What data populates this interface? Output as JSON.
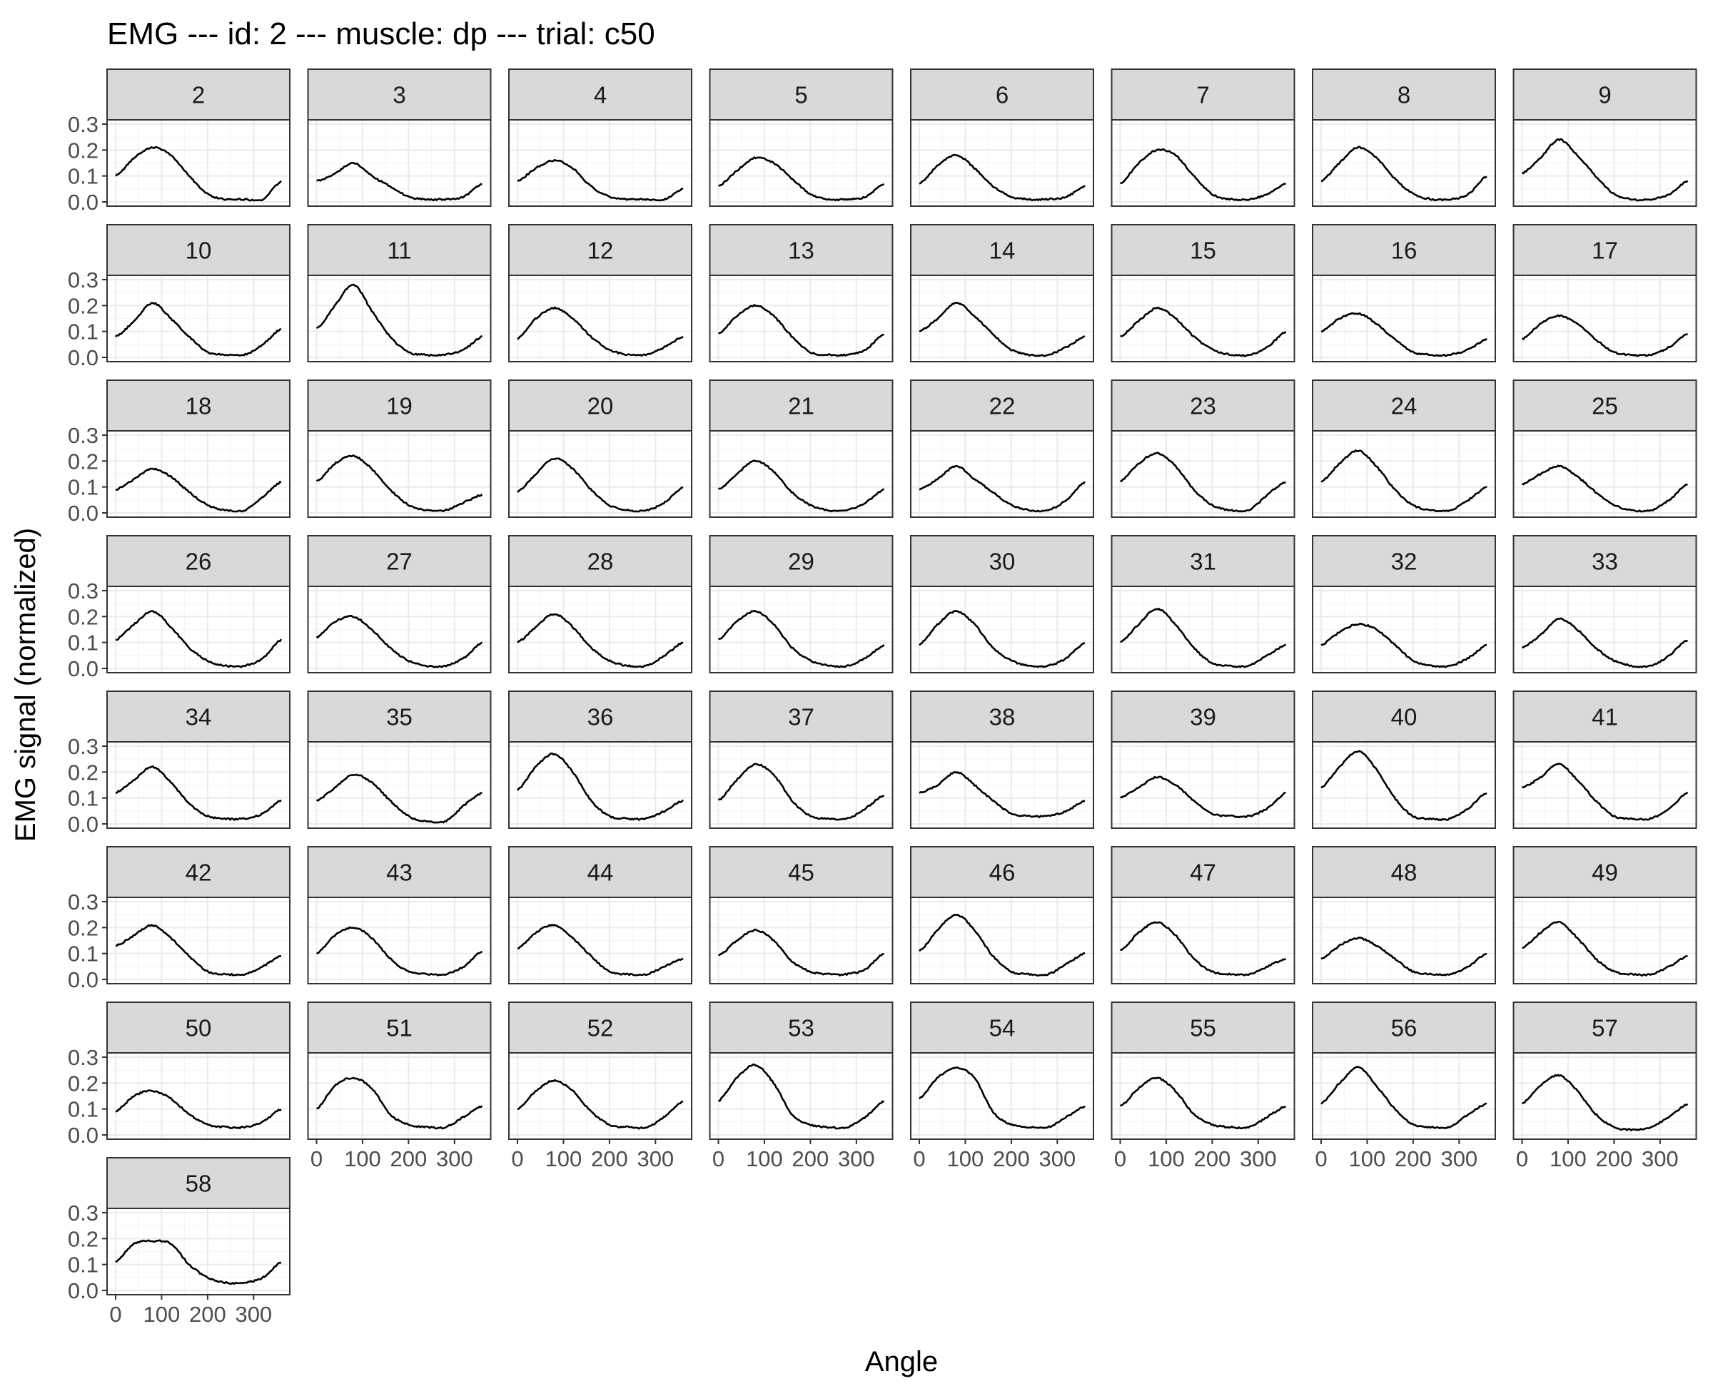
{
  "chart_data": {
    "type": "line",
    "layout": "faceted small multiples",
    "title": "EMG --- id: 2 --- muscle: dp --- trial: c50",
    "xlabel": "Angle",
    "ylabel": "EMG signal (normalized)",
    "xlim": [
      0,
      360
    ],
    "ylim": [
      0,
      0.3
    ],
    "x_ticks": [
      0,
      100,
      200,
      300
    ],
    "x_tick_labels": [
      "0",
      "100",
      "200",
      "300"
    ],
    "y_ticks": [
      0,
      0.1,
      0.2,
      0.3
    ],
    "y_tick_labels": [
      "0.0",
      "0.1",
      "0.2",
      "0.3"
    ],
    "grid": true,
    "legend": "none",
    "colors": {
      "line": "#000000",
      "strip_fill": "#d9d9d9",
      "panel_border": "#333333",
      "grid_major": "#ebebeb",
      "grid_minor": "#f5f5f5"
    },
    "sample_angles": [
      0,
      40,
      80,
      120,
      160,
      200,
      240,
      280,
      320,
      360
    ],
    "facets": [
      {
        "label": "2",
        "values": [
          0.1,
          0.17,
          0.21,
          0.18,
          0.1,
          0.03,
          0.01,
          0.01,
          0.01,
          0.08
        ]
      },
      {
        "label": "3",
        "values": [
          0.08,
          0.11,
          0.15,
          0.1,
          0.06,
          0.02,
          0.01,
          0.01,
          0.02,
          0.07
        ]
      },
      {
        "label": "4",
        "values": [
          0.08,
          0.13,
          0.16,
          0.13,
          0.06,
          0.02,
          0.01,
          0.01,
          0.01,
          0.05
        ]
      },
      {
        "label": "5",
        "values": [
          0.06,
          0.12,
          0.17,
          0.15,
          0.09,
          0.03,
          0.01,
          0.01,
          0.02,
          0.07
        ]
      },
      {
        "label": "6",
        "values": [
          0.07,
          0.14,
          0.18,
          0.13,
          0.06,
          0.02,
          0.01,
          0.01,
          0.02,
          0.06
        ]
      },
      {
        "label": "7",
        "values": [
          0.07,
          0.15,
          0.2,
          0.18,
          0.1,
          0.03,
          0.01,
          0.01,
          0.03,
          0.07
        ]
      },
      {
        "label": "8",
        "values": [
          0.08,
          0.15,
          0.21,
          0.17,
          0.09,
          0.03,
          0.01,
          0.01,
          0.03,
          0.1
        ]
      },
      {
        "label": "9",
        "values": [
          0.11,
          0.17,
          0.24,
          0.18,
          0.1,
          0.03,
          0.01,
          0.01,
          0.03,
          0.08
        ]
      },
      {
        "label": "10",
        "values": [
          0.08,
          0.14,
          0.21,
          0.15,
          0.08,
          0.02,
          0.01,
          0.01,
          0.05,
          0.11
        ]
      },
      {
        "label": "11",
        "values": [
          0.11,
          0.2,
          0.28,
          0.18,
          0.08,
          0.02,
          0.01,
          0.01,
          0.03,
          0.08
        ]
      },
      {
        "label": "12",
        "values": [
          0.07,
          0.15,
          0.19,
          0.15,
          0.08,
          0.03,
          0.01,
          0.01,
          0.04,
          0.08
        ]
      },
      {
        "label": "13",
        "values": [
          0.09,
          0.16,
          0.2,
          0.16,
          0.08,
          0.02,
          0.01,
          0.01,
          0.03,
          0.09
        ]
      },
      {
        "label": "14",
        "values": [
          0.1,
          0.15,
          0.21,
          0.16,
          0.09,
          0.03,
          0.01,
          0.01,
          0.04,
          0.08
        ]
      },
      {
        "label": "15",
        "values": [
          0.08,
          0.14,
          0.19,
          0.15,
          0.08,
          0.03,
          0.01,
          0.01,
          0.04,
          0.1
        ]
      },
      {
        "label": "16",
        "values": [
          0.1,
          0.15,
          0.17,
          0.13,
          0.07,
          0.02,
          0.01,
          0.01,
          0.03,
          0.07
        ]
      },
      {
        "label": "17",
        "values": [
          0.07,
          0.13,
          0.16,
          0.13,
          0.07,
          0.02,
          0.01,
          0.01,
          0.04,
          0.09
        ]
      },
      {
        "label": "18",
        "values": [
          0.09,
          0.13,
          0.17,
          0.14,
          0.08,
          0.03,
          0.01,
          0.01,
          0.06,
          0.12
        ]
      },
      {
        "label": "19",
        "values": [
          0.12,
          0.19,
          0.22,
          0.17,
          0.09,
          0.03,
          0.01,
          0.01,
          0.04,
          0.07
        ]
      },
      {
        "label": "20",
        "values": [
          0.08,
          0.15,
          0.21,
          0.17,
          0.09,
          0.03,
          0.01,
          0.01,
          0.04,
          0.1
        ]
      },
      {
        "label": "21",
        "values": [
          0.09,
          0.15,
          0.2,
          0.16,
          0.08,
          0.03,
          0.01,
          0.01,
          0.04,
          0.09
        ]
      },
      {
        "label": "22",
        "values": [
          0.09,
          0.13,
          0.18,
          0.13,
          0.08,
          0.03,
          0.01,
          0.01,
          0.05,
          0.12
        ]
      },
      {
        "label": "23",
        "values": [
          0.12,
          0.19,
          0.23,
          0.18,
          0.09,
          0.03,
          0.01,
          0.01,
          0.07,
          0.12
        ]
      },
      {
        "label": "24",
        "values": [
          0.12,
          0.19,
          0.24,
          0.18,
          0.09,
          0.03,
          0.01,
          0.01,
          0.05,
          0.1
        ]
      },
      {
        "label": "25",
        "values": [
          0.11,
          0.15,
          0.18,
          0.14,
          0.08,
          0.03,
          0.01,
          0.01,
          0.05,
          0.11
        ]
      },
      {
        "label": "26",
        "values": [
          0.11,
          0.17,
          0.22,
          0.16,
          0.08,
          0.03,
          0.01,
          0.01,
          0.04,
          0.11
        ]
      },
      {
        "label": "27",
        "values": [
          0.12,
          0.18,
          0.2,
          0.15,
          0.08,
          0.03,
          0.01,
          0.01,
          0.04,
          0.1
        ]
      },
      {
        "label": "28",
        "values": [
          0.1,
          0.16,
          0.21,
          0.16,
          0.08,
          0.03,
          0.01,
          0.01,
          0.05,
          0.1
        ]
      },
      {
        "label": "29",
        "values": [
          0.11,
          0.18,
          0.22,
          0.17,
          0.08,
          0.03,
          0.01,
          0.01,
          0.04,
          0.09
        ]
      },
      {
        "label": "30",
        "values": [
          0.09,
          0.17,
          0.22,
          0.17,
          0.08,
          0.03,
          0.01,
          0.01,
          0.04,
          0.1
        ]
      },
      {
        "label": "31",
        "values": [
          0.1,
          0.17,
          0.23,
          0.17,
          0.08,
          0.02,
          0.01,
          0.01,
          0.05,
          0.09
        ]
      },
      {
        "label": "32",
        "values": [
          0.09,
          0.14,
          0.17,
          0.15,
          0.09,
          0.03,
          0.01,
          0.01,
          0.04,
          0.09
        ]
      },
      {
        "label": "33",
        "values": [
          0.08,
          0.13,
          0.19,
          0.15,
          0.08,
          0.03,
          0.01,
          0.01,
          0.05,
          0.11
        ]
      },
      {
        "label": "34",
        "values": [
          0.12,
          0.17,
          0.22,
          0.16,
          0.08,
          0.03,
          0.02,
          0.02,
          0.04,
          0.09
        ]
      },
      {
        "label": "35",
        "values": [
          0.09,
          0.14,
          0.19,
          0.16,
          0.09,
          0.03,
          0.01,
          0.01,
          0.07,
          0.12
        ]
      },
      {
        "label": "36",
        "values": [
          0.13,
          0.22,
          0.27,
          0.2,
          0.09,
          0.03,
          0.02,
          0.02,
          0.05,
          0.09
        ]
      },
      {
        "label": "37",
        "values": [
          0.09,
          0.17,
          0.23,
          0.19,
          0.09,
          0.03,
          0.02,
          0.02,
          0.06,
          0.11
        ]
      },
      {
        "label": "38",
        "values": [
          0.12,
          0.15,
          0.2,
          0.15,
          0.09,
          0.04,
          0.03,
          0.03,
          0.05,
          0.09
        ]
      },
      {
        "label": "39",
        "values": [
          0.1,
          0.14,
          0.18,
          0.15,
          0.09,
          0.04,
          0.03,
          0.03,
          0.06,
          0.12
        ]
      },
      {
        "label": "40",
        "values": [
          0.14,
          0.22,
          0.28,
          0.21,
          0.1,
          0.03,
          0.02,
          0.02,
          0.06,
          0.12
        ]
      },
      {
        "label": "41",
        "values": [
          0.14,
          0.18,
          0.23,
          0.17,
          0.09,
          0.03,
          0.02,
          0.02,
          0.06,
          0.12
        ]
      },
      {
        "label": "42",
        "values": [
          0.13,
          0.17,
          0.21,
          0.16,
          0.09,
          0.03,
          0.02,
          0.02,
          0.05,
          0.09
        ]
      },
      {
        "label": "43",
        "values": [
          0.1,
          0.17,
          0.2,
          0.16,
          0.08,
          0.03,
          0.02,
          0.02,
          0.05,
          0.11
        ]
      },
      {
        "label": "44",
        "values": [
          0.12,
          0.18,
          0.21,
          0.16,
          0.09,
          0.03,
          0.02,
          0.02,
          0.05,
          0.08
        ]
      },
      {
        "label": "45",
        "values": [
          0.09,
          0.15,
          0.19,
          0.15,
          0.07,
          0.03,
          0.02,
          0.02,
          0.04,
          0.1
        ]
      },
      {
        "label": "46",
        "values": [
          0.11,
          0.19,
          0.25,
          0.19,
          0.09,
          0.03,
          0.02,
          0.02,
          0.06,
          0.1
        ]
      },
      {
        "label": "47",
        "values": [
          0.11,
          0.18,
          0.22,
          0.17,
          0.08,
          0.03,
          0.02,
          0.02,
          0.05,
          0.08
        ]
      },
      {
        "label": "48",
        "values": [
          0.08,
          0.13,
          0.16,
          0.13,
          0.08,
          0.03,
          0.02,
          0.02,
          0.05,
          0.1
        ]
      },
      {
        "label": "49",
        "values": [
          0.12,
          0.18,
          0.22,
          0.16,
          0.08,
          0.03,
          0.02,
          0.02,
          0.05,
          0.09
        ]
      },
      {
        "label": "50",
        "values": [
          0.09,
          0.15,
          0.17,
          0.14,
          0.08,
          0.04,
          0.03,
          0.03,
          0.05,
          0.1
        ]
      },
      {
        "label": "51",
        "values": [
          0.1,
          0.19,
          0.22,
          0.18,
          0.08,
          0.04,
          0.03,
          0.03,
          0.07,
          0.11
        ]
      },
      {
        "label": "52",
        "values": [
          0.1,
          0.17,
          0.21,
          0.17,
          0.09,
          0.04,
          0.03,
          0.03,
          0.07,
          0.13
        ]
      },
      {
        "label": "53",
        "values": [
          0.13,
          0.22,
          0.27,
          0.2,
          0.08,
          0.04,
          0.03,
          0.03,
          0.07,
          0.13
        ]
      },
      {
        "label": "54",
        "values": [
          0.14,
          0.22,
          0.26,
          0.22,
          0.09,
          0.04,
          0.03,
          0.03,
          0.07,
          0.11
        ]
      },
      {
        "label": "55",
        "values": [
          0.11,
          0.18,
          0.22,
          0.17,
          0.08,
          0.04,
          0.03,
          0.03,
          0.07,
          0.11
        ]
      },
      {
        "label": "56",
        "values": [
          0.12,
          0.2,
          0.26,
          0.19,
          0.1,
          0.04,
          0.03,
          0.03,
          0.08,
          0.12
        ]
      },
      {
        "label": "57",
        "values": [
          0.12,
          0.19,
          0.23,
          0.17,
          0.08,
          0.03,
          0.02,
          0.03,
          0.07,
          0.12
        ]
      },
      {
        "label": "58",
        "values": [
          0.11,
          0.18,
          0.19,
          0.18,
          0.1,
          0.05,
          0.03,
          0.03,
          0.05,
          0.11
        ]
      }
    ]
  }
}
